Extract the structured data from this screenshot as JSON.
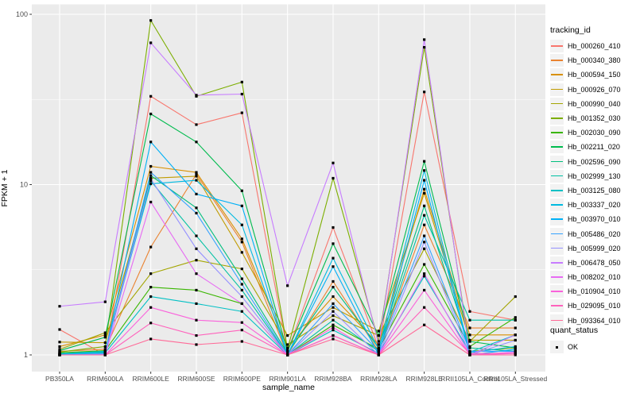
{
  "figure": {
    "panel_background": "#EBEBEB",
    "grid_color": "#FFFFFF",
    "axis_text_color": "#4D4D4D",
    "tick_color": "#333333",
    "point_color": "#000000"
  },
  "axes": {
    "x_title": "sample_name",
    "y_title": "FPKM + 1"
  },
  "legend": {
    "tracking_title": "tracking_id",
    "quant_title": "quant_status",
    "quant_items": [
      {
        "label": "OK",
        "shape": "filled-square"
      }
    ]
  },
  "chart_data": {
    "type": "line",
    "title": "",
    "xlabel": "sample_name",
    "ylabel": "FPKM + 1",
    "y_scale": "log10",
    "ylim": [
      0.8,
      113
    ],
    "y_major_ticks": [
      1,
      10,
      100
    ],
    "y_tick_labels": [
      "1",
      "10",
      "100"
    ],
    "y_minor_ticks": [
      3.162,
      31.62
    ],
    "grid": true,
    "legend_position": "right",
    "point_shape": "filled-square",
    "x_categories": [
      "PB350LA",
      "RRIM600LA",
      "RRIM600LE",
      "RRIM600SE",
      "RRIM600PE",
      "RRIM901LA",
      "RRIM928BA",
      "RRIM928LA",
      "RRIM928LE",
      "RRII105LA_Control",
      "RRII105LA_Stressed"
    ],
    "series": [
      {
        "name": "Hb_000260_410",
        "color": "#F8766D",
        "values": [
          1.41,
          1.0,
          33.0,
          22.5,
          26.4,
          1.05,
          5.6,
          1.1,
          35.0,
          1.8,
          1.6
        ]
      },
      {
        "name": "Hb_000340_380",
        "color": "#EA8331",
        "values": [
          1.05,
          1.08,
          4.3,
          11.5,
          4.6,
          1.0,
          2.7,
          1.05,
          5.8,
          1.44,
          1.44
        ]
      },
      {
        "name": "Hb_000594_150",
        "color": "#D89000",
        "values": [
          1.12,
          1.31,
          12.8,
          11.8,
          4.8,
          1.1,
          2.2,
          1.15,
          9.4,
          1.31,
          1.31
        ]
      },
      {
        "name": "Hb_000926_070",
        "color": "#C09B00",
        "values": [
          1.19,
          1.18,
          10.9,
          11.2,
          4.0,
          1.3,
          1.9,
          1.38,
          8.9,
          1.22,
          1.22
        ]
      },
      {
        "name": "Hb_000990_040",
        "color": "#A3A500",
        "values": [
          1.08,
          1.35,
          3.0,
          3.6,
          3.2,
          1.15,
          1.7,
          1.3,
          4.2,
          1.2,
          2.2
        ]
      },
      {
        "name": "Hb_001352_030",
        "color": "#7CAE00",
        "values": [
          1.04,
          1.12,
          92.0,
          33.0,
          40.0,
          1.08,
          10.9,
          1.2,
          64.0,
          1.05,
          1.1
        ]
      },
      {
        "name": "Hb_002030_090",
        "color": "#39B600",
        "values": [
          1.03,
          1.06,
          2.5,
          2.4,
          2.0,
          1.0,
          1.5,
          1.08,
          3.4,
          1.12,
          1.66
        ]
      },
      {
        "name": "Hb_002211_020",
        "color": "#00BB4E",
        "values": [
          1.06,
          1.27,
          26.0,
          17.8,
          9.2,
          1.05,
          4.5,
          1.3,
          13.7,
          1.2,
          1.1
        ]
      },
      {
        "name": "Hb_002596_090",
        "color": "#00BF7D",
        "values": [
          1.02,
          1.05,
          11.3,
          7.3,
          2.8,
          1.02,
          2.5,
          1.1,
          7.5,
          1.1,
          1.05
        ]
      },
      {
        "name": "Hb_002999_130",
        "color": "#00C1A3",
        "values": [
          1.02,
          1.04,
          10.5,
          5.0,
          2.4,
          1.0,
          1.6,
          1.05,
          6.6,
          1.6,
          1.6
        ]
      },
      {
        "name": "Hb_003125_080",
        "color": "#00C0C4",
        "values": [
          1.01,
          1.03,
          2.2,
          2.0,
          1.8,
          1.0,
          1.4,
          1.02,
          2.9,
          1.04,
          1.31
        ]
      },
      {
        "name": "Hb_003337_020",
        "color": "#00BAE0",
        "values": [
          1.01,
          1.05,
          10.1,
          10.6,
          5.8,
          1.0,
          3.7,
          1.08,
          12.1,
          1.03,
          1.12
        ]
      },
      {
        "name": "Hb_003970_010",
        "color": "#00B0F6",
        "values": [
          1.0,
          1.02,
          17.8,
          8.8,
          7.5,
          1.0,
          3.3,
          1.0,
          10.6,
          1.0,
          1.08
        ]
      },
      {
        "name": "Hb_005486_020",
        "color": "#35A2FF",
        "values": [
          1.0,
          1.02,
          11.8,
          6.8,
          2.6,
          1.0,
          2.0,
          1.05,
          5.0,
          1.05,
          1.05
        ]
      },
      {
        "name": "Hb_005999_020",
        "color": "#9590FF",
        "values": [
          1.0,
          1.01,
          10.8,
          4.2,
          2.2,
          1.0,
          1.8,
          1.0,
          4.6,
          1.0,
          1.22
        ]
      },
      {
        "name": "Hb_006478_050",
        "color": "#C77CFF",
        "values": [
          1.93,
          2.05,
          68.0,
          33.5,
          34.0,
          2.55,
          13.4,
          1.15,
          71.0,
          1.0,
          1.31
        ]
      },
      {
        "name": "Hb_008202_010",
        "color": "#E76BF3",
        "values": [
          1.0,
          1.0,
          7.9,
          3.0,
          2.0,
          1.0,
          1.3,
          1.0,
          3.0,
          1.0,
          1.04
        ]
      },
      {
        "name": "Hb_010904_010",
        "color": "#FA62DB",
        "values": [
          1.0,
          1.0,
          1.9,
          1.6,
          1.55,
          1.0,
          1.45,
          1.0,
          2.4,
          1.0,
          1.02
        ]
      },
      {
        "name": "Hb_029095_010",
        "color": "#FF62BC",
        "values": [
          1.0,
          1.0,
          1.54,
          1.3,
          1.4,
          1.0,
          1.3,
          1.0,
          1.9,
          1.02,
          1.02
        ]
      },
      {
        "name": "Hb_093364_010",
        "color": "#FF6A98",
        "values": [
          1.0,
          1.0,
          1.24,
          1.15,
          1.2,
          1.0,
          1.24,
          1.0,
          1.5,
          1.0,
          1.0
        ]
      }
    ]
  }
}
